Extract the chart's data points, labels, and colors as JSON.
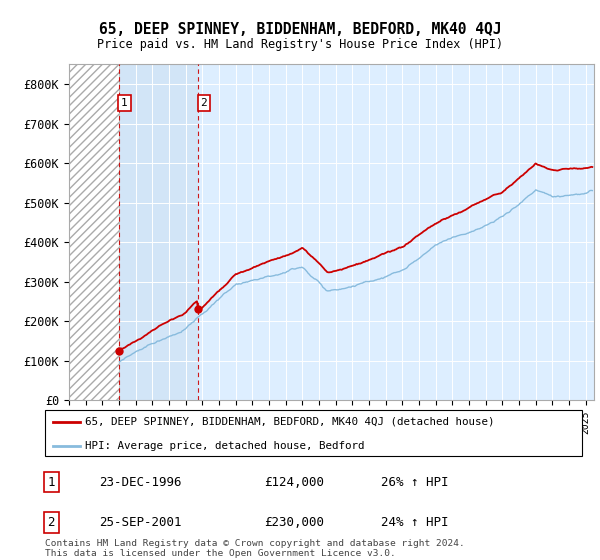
{
  "title1": "65, DEEP SPINNEY, BIDDENHAM, BEDFORD, MK40 4QJ",
  "title2": "Price paid vs. HM Land Registry's House Price Index (HPI)",
  "legend_line1": "65, DEEP SPINNEY, BIDDENHAM, BEDFORD, MK40 4QJ (detached house)",
  "legend_line2": "HPI: Average price, detached house, Bedford",
  "footnote": "Contains HM Land Registry data © Crown copyright and database right 2024.\nThis data is licensed under the Open Government Licence v3.0.",
  "sale1_date": "23-DEC-1996",
  "sale1_price": "£124,000",
  "sale1_hpi": "26% ↑ HPI",
  "sale1_x": 1996.97,
  "sale1_y": 124000,
  "sale2_date": "25-SEP-2001",
  "sale2_price": "£230,000",
  "sale2_hpi": "24% ↑ HPI",
  "sale2_x": 2001.73,
  "sale2_y": 230000,
  "xmin": 1994.0,
  "xmax": 2025.5,
  "ymin": 0,
  "ymax": 850000,
  "background_color": "#ffffff",
  "plot_bg_color": "#ddeeff",
  "red_color": "#cc0000",
  "blue_color": "#88bbdd",
  "yticks": [
    0,
    100000,
    200000,
    300000,
    400000,
    500000,
    600000,
    700000,
    800000
  ],
  "ytick_labels": [
    "£0",
    "£100K",
    "£200K",
    "£300K",
    "£400K",
    "£500K",
    "£600K",
    "£700K",
    "£800K"
  ]
}
